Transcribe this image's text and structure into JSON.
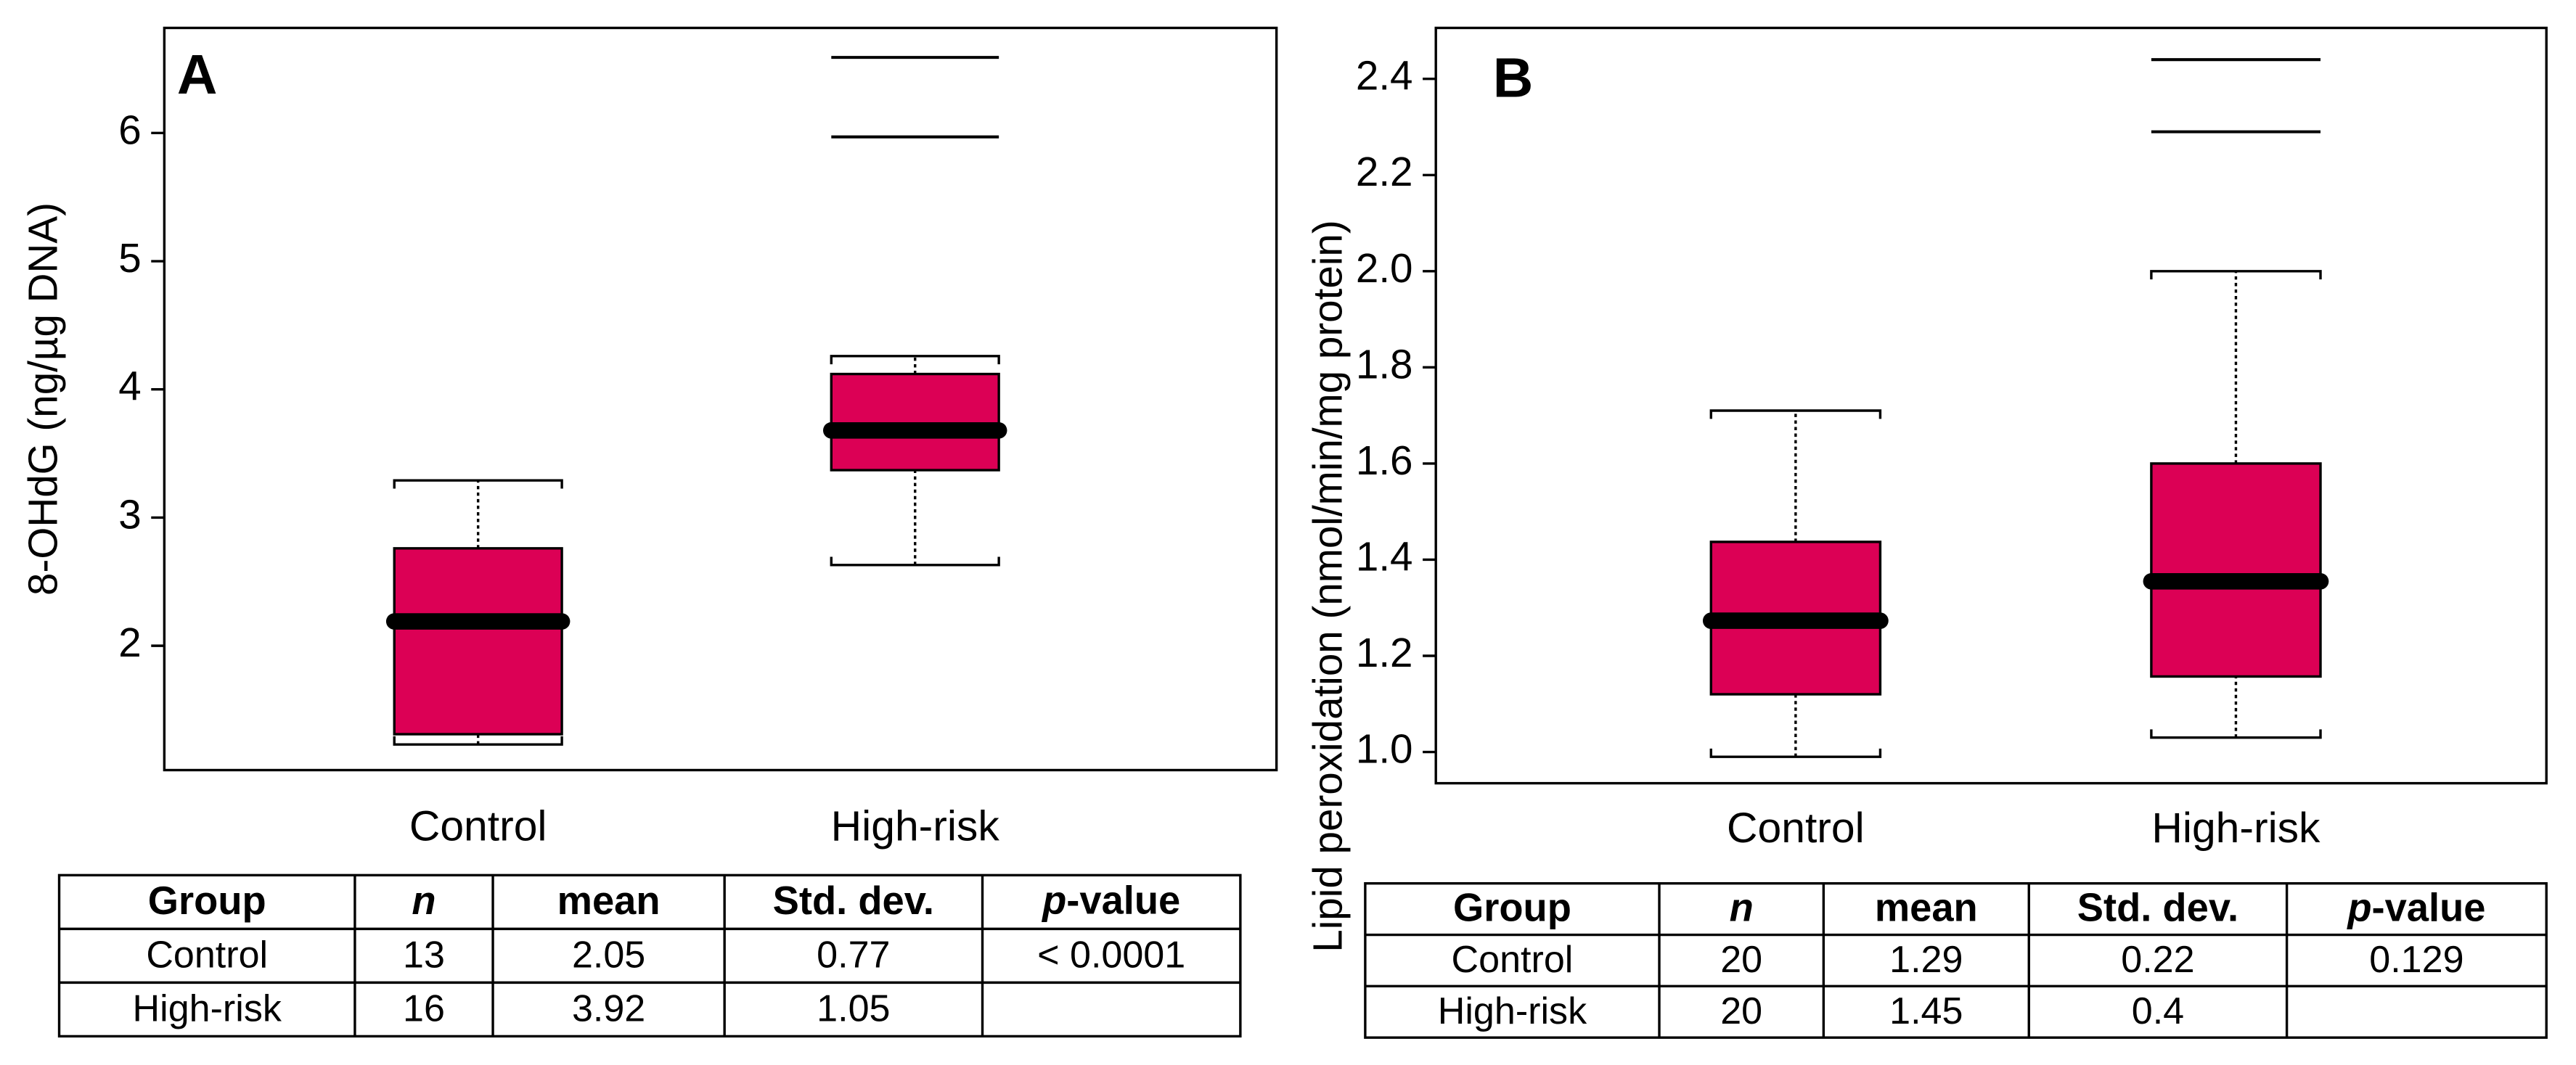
{
  "chart_data": [
    {
      "type": "box",
      "panel_label": "A",
      "ylabel": "8-OHdG (ng/µg DNA)",
      "color": "#dc0055",
      "categories": [
        "Control",
        "High-risk"
      ],
      "boxes": [
        {
          "min": 1.23,
          "q1": 1.31,
          "median": 2.19,
          "q3": 2.76,
          "max": 3.29,
          "outliers": []
        },
        {
          "min": 2.63,
          "q1": 3.37,
          "median": 3.68,
          "q3": 4.12,
          "max": 4.26,
          "outliers": [
            5.97,
            6.59
          ]
        }
      ],
      "ylim": [
        1.03,
        6.82
      ],
      "yticks": [
        2,
        3,
        4,
        5,
        6
      ]
    },
    {
      "type": "box",
      "panel_label": "B",
      "ylabel": "Lipid peroxidation  (nmol/min/mg protein)",
      "color": "#dc0055",
      "categories": [
        "Control",
        "High-risk"
      ],
      "boxes": [
        {
          "min": 0.99,
          "q1": 1.12,
          "median": 1.273,
          "q3": 1.437,
          "max": 1.71,
          "outliers": []
        },
        {
          "min": 1.03,
          "q1": 1.157,
          "median": 1.355,
          "q3": 1.6,
          "max": 2.0,
          "outliers": [
            2.29,
            2.44
          ]
        }
      ],
      "ylim": [
        0.935,
        2.506
      ],
      "yticks": [
        {
          "value": 1,
          "label": "1.0"
        },
        1.2,
        1.4,
        1.6,
        1.8,
        {
          "value": 2,
          "label": "2.0"
        },
        2.2,
        2.4
      ]
    }
  ],
  "tables": [
    {
      "header": [
        "Group",
        "n",
        "mean",
        "Std. dev.",
        "p-value"
      ],
      "rows": [
        [
          "Control",
          "13",
          "2.05",
          "0.77",
          "< 0.0001"
        ],
        [
          "High-risk",
          "16",
          "3.92",
          "1.05"
        ]
      ]
    },
    {
      "header": [
        "Group",
        "n",
        "mean",
        "Std. dev.",
        "p-value"
      ],
      "rows": [
        [
          "Control",
          "20",
          "1.29",
          "0.22",
          "0.129"
        ],
        [
          "High-risk",
          "20",
          "1.45",
          "0.4"
        ]
      ]
    }
  ]
}
